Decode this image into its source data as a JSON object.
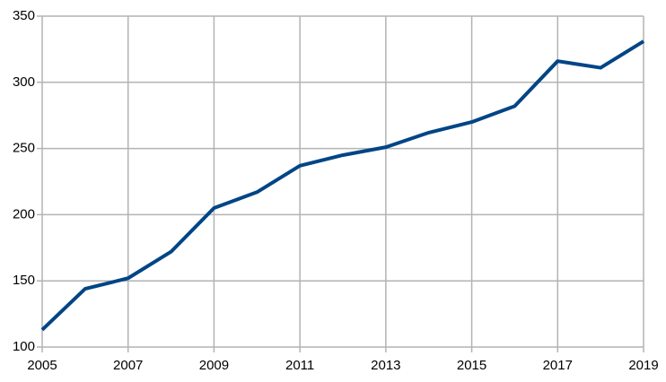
{
  "chart_data": {
    "type": "line",
    "x": [
      2005,
      2006,
      2007,
      2008,
      2009,
      2010,
      2011,
      2012,
      2013,
      2014,
      2015,
      2016,
      2017,
      2018,
      2019
    ],
    "series": [
      {
        "color": "#004586",
        "values": [
          113,
          144,
          152,
          172,
          205,
          217,
          237,
          245,
          251,
          262,
          270,
          282,
          316,
          311,
          331
        ]
      }
    ],
    "xlim": [
      2005,
      2019
    ],
    "xticks": [
      2005,
      2007,
      2009,
      2011,
      2013,
      2015,
      2017,
      2019
    ],
    "ylim": [
      100,
      350
    ],
    "yticks": [
      100,
      150,
      200,
      250,
      300,
      350
    ],
    "grid": true
  }
}
